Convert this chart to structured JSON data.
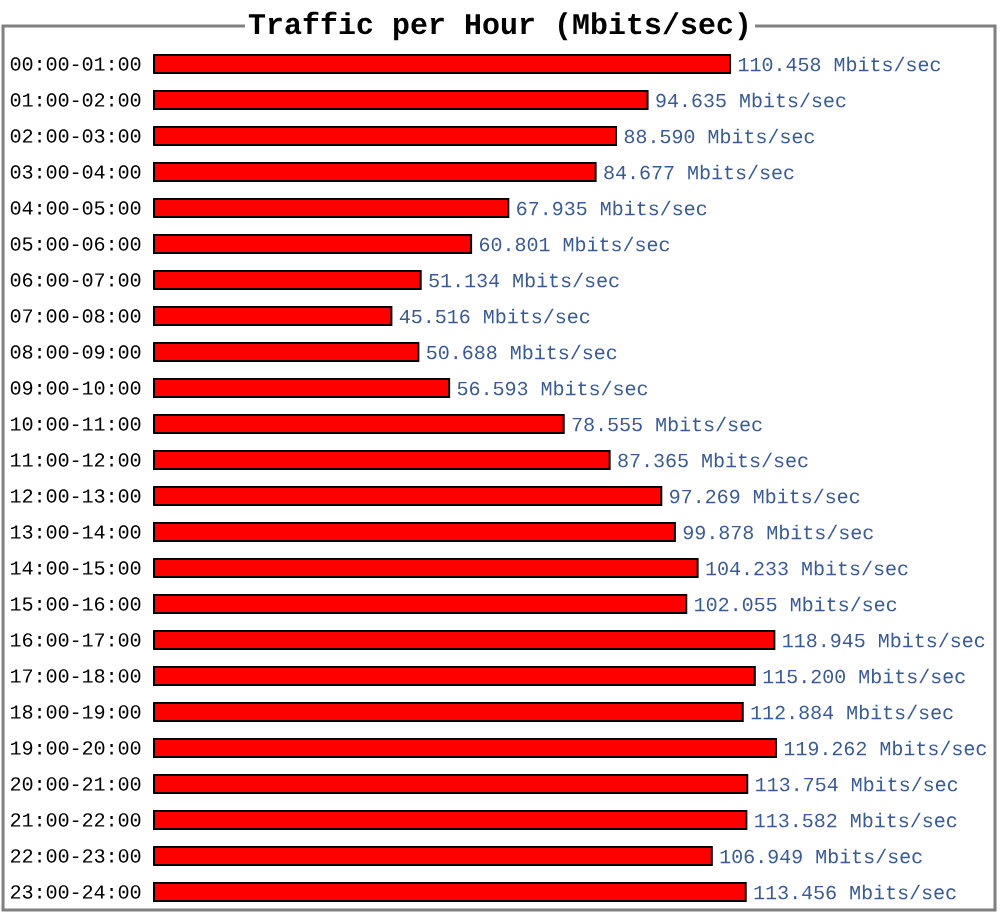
{
  "chart_data": {
    "type": "bar",
    "orientation": "horizontal",
    "title": "Traffic per Hour (Mbits/sec)",
    "categories": [
      "00:00-01:00",
      "01:00-02:00",
      "02:00-03:00",
      "03:00-04:00",
      "04:00-05:00",
      "05:00-06:00",
      "06:00-07:00",
      "07:00-08:00",
      "08:00-09:00",
      "09:00-10:00",
      "10:00-11:00",
      "11:00-12:00",
      "12:00-13:00",
      "13:00-14:00",
      "14:00-15:00",
      "15:00-16:00",
      "16:00-17:00",
      "17:00-18:00",
      "18:00-19:00",
      "19:00-20:00",
      "20:00-21:00",
      "21:00-22:00",
      "22:00-23:00",
      "23:00-24:00"
    ],
    "values": [
      110.458,
      94.635,
      88.59,
      84.677,
      67.935,
      60.801,
      51.134,
      45.516,
      50.688,
      56.593,
      78.555,
      87.365,
      97.269,
      99.878,
      104.233,
      102.055,
      118.945,
      115.2,
      112.884,
      119.262,
      113.754,
      113.582,
      106.949,
      113.456
    ],
    "color": "#ff0000",
    "value_labels": [
      "110.458 Mbits/sec",
      "94.635 Mbits/sec",
      "88.590 Mbits/sec",
      "84.677 Mbits/sec",
      "67.935 Mbits/sec",
      "60.801 Mbits/sec",
      "51.134 Mbits/sec",
      "45.516 Mbits/sec",
      "50.688 Mbits/sec",
      "56.593 Mbits/sec",
      "78.555 Mbits/sec",
      "87.365 Mbits/sec",
      "97.269 Mbits/sec",
      "99.878 Mbits/sec",
      "104.233 Mbits/sec",
      "102.055 Mbits/sec",
      "118.945 Mbits/sec",
      "115.200 Mbits/sec",
      "112.884 Mbits/sec",
      "119.262 Mbits/sec",
      "113.754 Mbits/sec",
      "113.582 Mbits/sec",
      "106.949 Mbits/sec",
      "113.456 Mbits/sec"
    ]
  }
}
